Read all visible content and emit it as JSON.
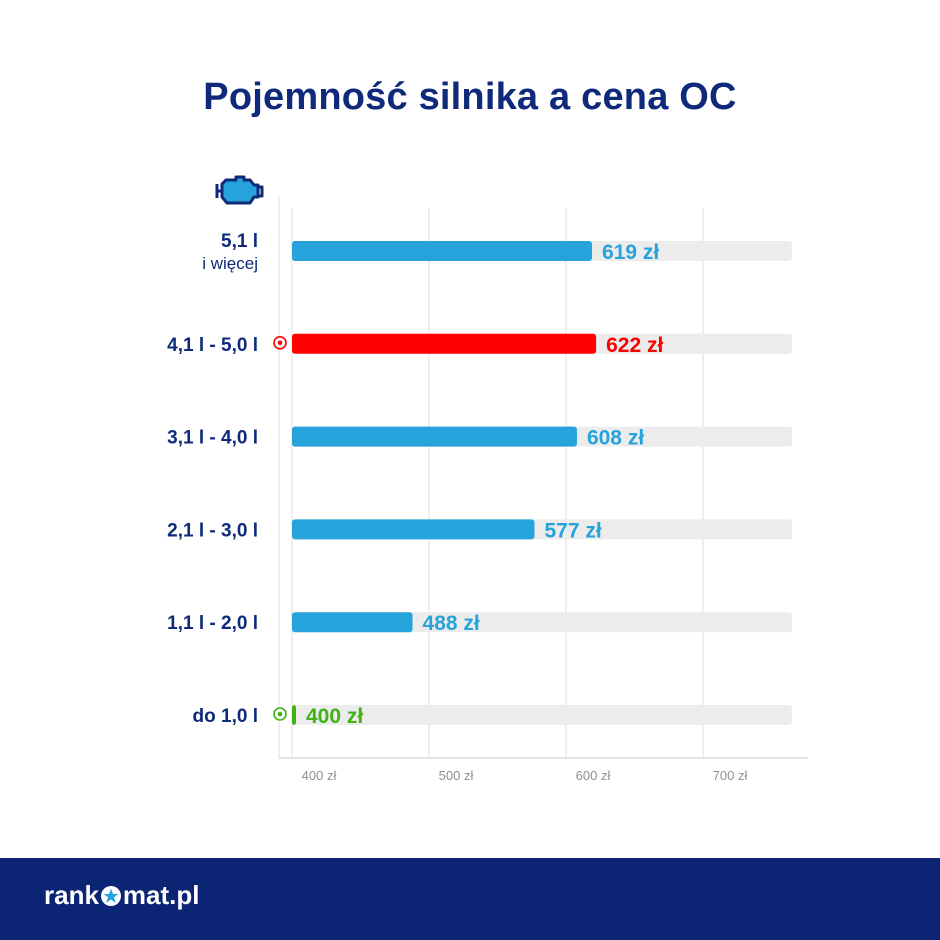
{
  "title": "Pojemność silnika a cena OC",
  "footer": {
    "logo_left": "rank",
    "logo_right": "mat.pl"
  },
  "colors": {
    "title": "#0f2a7a",
    "bar_default": "#27a3dc",
    "bar_highlight_max": "#ff0000",
    "bar_highlight_min": "#3fb313",
    "track": "#ececec",
    "footer": "#0b2474"
  },
  "chart_data": {
    "type": "bar",
    "orientation": "horizontal",
    "title": "Pojemność silnika a cena OC",
    "categories": [
      [
        "5,1 l",
        "i więcej"
      ],
      [
        "4,1 l - 5,0 l"
      ],
      [
        "3,1 l - 4,0 l"
      ],
      [
        "2,1 l - 3,0 l"
      ],
      [
        "1,1 l - 2,0 l"
      ],
      [
        "do 1,0 l"
      ]
    ],
    "values": [
      619,
      622,
      608,
      577,
      488,
      400
    ],
    "value_labels": [
      "619 zł",
      "622 zł",
      "608 zł",
      "577 zł",
      "488 zł",
      "400 zł"
    ],
    "highlight": [
      "none",
      "max",
      "none",
      "none",
      "none",
      "min"
    ],
    "xticks": [
      400,
      500,
      600,
      700
    ],
    "xtick_labels": [
      "400 zł",
      "500 zł",
      "600 zł",
      "700 zł"
    ],
    "xlim": [
      392,
      758
    ],
    "grid": true
  }
}
